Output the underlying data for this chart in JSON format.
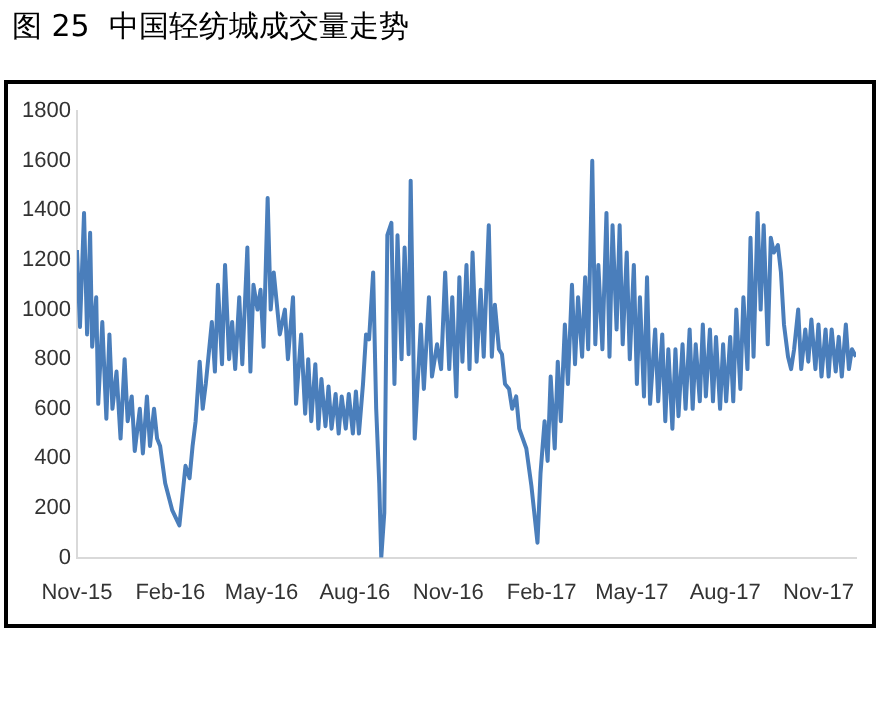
{
  "chart_data": {
    "type": "line",
    "title": "图 25  中国轻纺城成交量走势",
    "x": [
      "2015-11-01",
      "2015-11-04",
      "2015-11-08",
      "2015-11-11",
      "2015-11-14",
      "2015-11-16",
      "2015-11-20",
      "2015-11-22",
      "2015-11-26",
      "2015-11-30",
      "2015-12-03",
      "2015-12-06",
      "2015-12-10",
      "2015-12-14",
      "2015-12-18",
      "2015-12-21",
      "2015-12-25",
      "2015-12-28",
      "2016-01-02",
      "2016-01-05",
      "2016-01-09",
      "2016-01-12",
      "2016-01-16",
      "2016-01-19",
      "2016-01-22",
      "2016-01-27",
      "2016-02-03",
      "2016-02-10",
      "2016-02-13",
      "2016-02-16",
      "2016-02-20",
      "2016-02-23",
      "2016-02-26",
      "2016-03-01",
      "2016-03-04",
      "2016-03-07",
      "2016-03-13",
      "2016-03-16",
      "2016-03-19",
      "2016-03-23",
      "2016-03-26",
      "2016-03-30",
      "2016-04-02",
      "2016-04-05",
      "2016-04-09",
      "2016-04-12",
      "2016-04-17",
      "2016-04-20",
      "2016-04-23",
      "2016-04-27",
      "2016-04-30",
      "2016-05-03",
      "2016-05-07",
      "2016-05-10",
      "2016-05-13",
      "2016-05-19",
      "2016-05-24",
      "2016-05-27",
      "2016-06-01",
      "2016-06-04",
      "2016-06-09",
      "2016-06-13",
      "2016-06-16",
      "2016-06-19",
      "2016-06-23",
      "2016-06-26",
      "2016-06-29",
      "2016-07-03",
      "2016-07-06",
      "2016-07-09",
      "2016-07-13",
      "2016-07-16",
      "2016-07-19",
      "2016-07-23",
      "2016-07-26",
      "2016-07-30",
      "2016-08-02",
      "2016-08-05",
      "2016-08-09",
      "2016-08-12",
      "2016-08-15",
      "2016-08-19",
      "2016-08-22",
      "2016-08-25",
      "2016-08-27",
      "2016-08-30",
      "2016-09-02",
      "2016-09-06",
      "2016-09-09",
      "2016-09-12",
      "2016-09-16",
      "2016-09-19",
      "2016-09-23",
      "2016-09-25",
      "2016-09-29",
      "2016-10-05",
      "2016-10-08",
      "2016-10-13",
      "2016-10-16",
      "2016-10-21",
      "2016-10-25",
      "2016-10-29",
      "2016-11-02",
      "2016-11-05",
      "2016-11-09",
      "2016-11-12",
      "2016-11-15",
      "2016-11-19",
      "2016-11-22",
      "2016-11-25",
      "2016-11-29",
      "2016-12-03",
      "2016-12-06",
      "2016-12-11",
      "2016-12-14",
      "2016-12-17",
      "2016-12-21",
      "2016-12-24",
      "2016-12-27",
      "2016-12-31",
      "2017-01-03",
      "2017-01-07",
      "2017-01-10",
      "2017-01-17",
      "2017-01-22",
      "2017-01-28",
      "2017-01-31",
      "2017-02-04",
      "2017-02-07",
      "2017-02-10",
      "2017-02-14",
      "2017-02-17",
      "2017-02-20",
      "2017-02-24",
      "2017-02-27",
      "2017-03-03",
      "2017-03-06",
      "2017-03-09",
      "2017-03-13",
      "2017-03-16",
      "2017-03-19",
      "2017-03-23",
      "2017-03-26",
      "2017-03-29",
      "2017-04-02",
      "2017-04-06",
      "2017-04-09",
      "2017-04-12",
      "2017-04-16",
      "2017-04-19",
      "2017-04-22",
      "2017-04-26",
      "2017-04-29",
      "2017-05-03",
      "2017-05-06",
      "2017-05-09",
      "2017-05-13",
      "2017-05-16",
      "2017-05-19",
      "2017-05-24",
      "2017-05-27",
      "2017-05-31",
      "2017-06-03",
      "2017-06-06",
      "2017-06-10",
      "2017-06-13",
      "2017-06-16",
      "2017-06-20",
      "2017-06-23",
      "2017-06-27",
      "2017-06-30",
      "2017-07-03",
      "2017-07-07",
      "2017-07-10",
      "2017-07-13",
      "2017-07-17",
      "2017-07-20",
      "2017-07-23",
      "2017-07-27",
      "2017-07-30",
      "2017-08-02",
      "2017-08-06",
      "2017-08-09",
      "2017-08-12",
      "2017-08-16",
      "2017-08-19",
      "2017-08-23",
      "2017-08-26",
      "2017-08-29",
      "2017-09-02",
      "2017-09-05",
      "2017-09-08",
      "2017-09-12",
      "2017-09-15",
      "2017-09-18",
      "2017-09-22",
      "2017-09-25",
      "2017-09-28",
      "2017-10-02",
      "2017-10-05",
      "2017-10-08",
      "2017-10-12",
      "2017-10-15",
      "2017-10-19",
      "2017-10-22",
      "2017-10-25",
      "2017-10-29",
      "2017-11-01",
      "2017-11-04",
      "2017-11-08",
      "2017-11-11",
      "2017-11-14",
      "2017-11-18",
      "2017-11-21",
      "2017-11-24",
      "2017-11-28",
      "2017-12-01",
      "2017-12-04",
      "2017-12-08"
    ],
    "series": [
      {
        "color": "#4a7ebb",
        "values": [
          1240,
          930,
          1390,
          900,
          1310,
          850,
          1050,
          620,
          950,
          560,
          900,
          600,
          750,
          480,
          800,
          550,
          650,
          430,
          600,
          420,
          650,
          450,
          600,
          480,
          450,
          300,
          190,
          130,
          250,
          370,
          320,
          450,
          550,
          790,
          600,
          700,
          950,
          750,
          1100,
          780,
          1180,
          800,
          950,
          760,
          1050,
          780,
          1250,
          750,
          1100,
          1000,
          1080,
          850,
          1450,
          1000,
          1150,
          900,
          1000,
          800,
          1050,
          620,
          900,
          580,
          800,
          550,
          780,
          520,
          720,
          530,
          690,
          520,
          660,
          500,
          650,
          520,
          660,
          500,
          670,
          500,
          700,
          900,
          880,
          1150,
          600,
          300,
          0,
          180,
          1300,
          1350,
          700,
          1300,
          800,
          1250,
          820,
          1520,
          480,
          940,
          680,
          1050,
          730,
          860,
          760,
          1150,
          760,
          1050,
          650,
          1130,
          790,
          1180,
          760,
          1230,
          790,
          1080,
          810,
          1340,
          810,
          1020,
          840,
          820,
          700,
          680,
          600,
          650,
          520,
          440,
          290,
          60,
          340,
          550,
          390,
          730,
          440,
          790,
          550,
          940,
          700,
          1100,
          780,
          1050,
          810,
          1130,
          840,
          1600,
          860,
          1180,
          840,
          1390,
          810,
          1340,
          920,
          1340,
          860,
          1230,
          800,
          1180,
          700,
          1050,
          650,
          1130,
          620,
          920,
          630,
          900,
          550,
          840,
          520,
          840,
          570,
          860,
          600,
          920,
          600,
          860,
          630,
          940,
          650,
          920,
          630,
          890,
          600,
          860,
          630,
          890,
          630,
          1000,
          680,
          1050,
          760,
          1290,
          810,
          1390,
          1000,
          1340,
          860,
          1290,
          1230,
          1260,
          1150,
          940,
          810,
          760,
          840,
          1000,
          760,
          920,
          790,
          960,
          760,
          940,
          730,
          920,
          730,
          920,
          750,
          890,
          730,
          940,
          760,
          840,
          810
        ]
      }
    ],
    "xlim": [
      "2015-11-01",
      "2017-12-08"
    ],
    "xticks": [
      {
        "value": "2015-11-01",
        "label": "Nov-15"
      },
      {
        "value": "2016-02-01",
        "label": "Feb-16"
      },
      {
        "value": "2016-05-01",
        "label": "May-16"
      },
      {
        "value": "2016-08-01",
        "label": "Aug-16"
      },
      {
        "value": "2016-11-01",
        "label": "Nov-16"
      },
      {
        "value": "2017-02-01",
        "label": "Feb-17"
      },
      {
        "value": "2017-05-01",
        "label": "May-17"
      },
      {
        "value": "2017-08-01",
        "label": "Aug-17"
      },
      {
        "value": "2017-11-01",
        "label": "Nov-17"
      }
    ],
    "ylim": [
      0,
      1800
    ],
    "yticks": [
      0,
      200,
      400,
      600,
      800,
      1000,
      1200,
      1400,
      1600,
      1800
    ],
    "grid": false,
    "legend": false,
    "marker": "none",
    "line_style": "solid"
  }
}
